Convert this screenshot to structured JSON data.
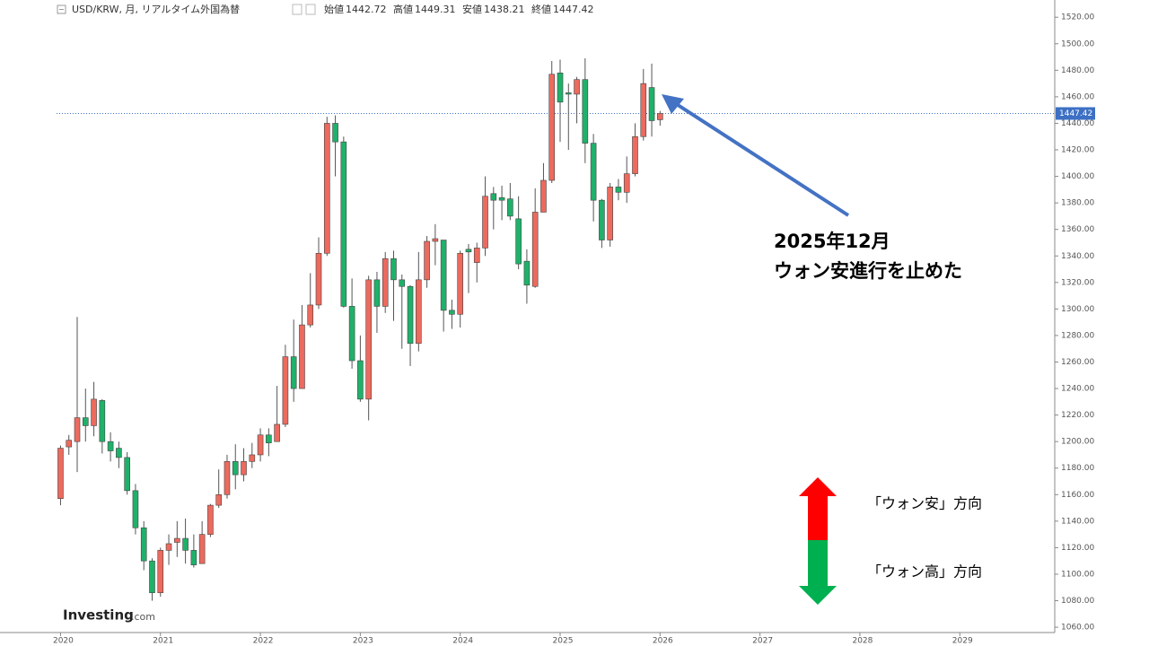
{
  "chart_data": {
    "type": "candlestick",
    "title": "USD/KRW, 月, リアルタイム外国為替",
    "ohlc_labels": [
      "始値",
      "高値",
      "安値",
      "終値"
    ],
    "source": [
      "Investing",
      ".com"
    ],
    "annotation": [
      "2025年12月",
      "ウォン安進行を止めた"
    ],
    "direction_labels": [
      "「ウォン安」方向",
      "「ウォン高」方向"
    ],
    "up_color": "#ec6a5e",
    "down_color": "#1fb16a",
    "last_price_color": "#3d70c4",
    "open": [
      1157,
      1196,
      1200,
      1218,
      1212,
      1231,
      1200,
      1195,
      1188,
      1163,
      1135,
      1110,
      1086,
      1118,
      1124,
      1127,
      1118,
      1108,
      1130,
      1152,
      1160,
      1185,
      1175,
      1185,
      1190,
      1205,
      1200,
      1213,
      1264,
      1240,
      1288,
      1303,
      1342,
      1440,
      1426,
      1302,
      1261,
      1232,
      1322,
      1302,
      1338,
      1322,
      1317,
      1274,
      1322,
      1351,
      1352,
      1299,
      1296,
      1345,
      1335,
      1346,
      1387,
      1384,
      1383,
      1368,
      1336,
      1317,
      1373,
      1397,
      1478,
      1463,
      1462,
      1473,
      1425,
      1382,
      1352,
      1392,
      1388,
      1402,
      1430,
      1467,
      1442.72
    ],
    "high": [
      1197,
      1205,
      1294,
      1240,
      1245,
      1232,
      1207,
      1200,
      1192,
      1168,
      1140,
      1112,
      1120,
      1130,
      1140,
      1142,
      1130,
      1140,
      1153,
      1179,
      1190,
      1198,
      1195,
      1199,
      1210,
      1210,
      1242,
      1273,
      1292,
      1303,
      1327,
      1354,
      1445,
      1446,
      1430,
      1323,
      1280,
      1325,
      1328,
      1343,
      1344,
      1326,
      1318,
      1343,
      1355,
      1364,
      1352,
      1307,
      1344,
      1349,
      1350,
      1400,
      1392,
      1393,
      1395,
      1385,
      1345,
      1391,
      1410,
      1487,
      1488,
      1470,
      1475,
      1489,
      1432,
      1383,
      1395,
      1398,
      1415,
      1440,
      1481,
      1485,
      1449.31
    ],
    "low": [
      1152,
      1190,
      1177,
      1200,
      1204,
      1191,
      1185,
      1180,
      1160,
      1130,
      1103,
      1080,
      1083,
      1107,
      1113,
      1108,
      1105,
      1108,
      1128,
      1150,
      1157,
      1164,
      1170,
      1180,
      1185,
      1189,
      1200,
      1211,
      1230,
      1240,
      1286,
      1300,
      1340,
      1400,
      1301,
      1255,
      1230,
      1216,
      1282,
      1297,
      1291,
      1270,
      1257,
      1268,
      1316,
      1333,
      1283,
      1285,
      1286,
      1312,
      1320,
      1340,
      1360,
      1367,
      1367,
      1330,
      1304,
      1316,
      1373,
      1395,
      1426,
      1420,
      1440,
      1410,
      1366,
      1346,
      1347,
      1382,
      1380,
      1400,
      1427,
      1430,
      1438.21
    ],
    "close": [
      1195,
      1201,
      1218,
      1212,
      1232,
      1200,
      1193,
      1188,
      1163,
      1135,
      1110,
      1086,
      1118,
      1123,
      1127,
      1118,
      1107,
      1130,
      1152,
      1160,
      1185,
      1175,
      1185,
      1190,
      1205,
      1199,
      1213,
      1264,
      1240,
      1288,
      1303,
      1342,
      1440,
      1426,
      1302,
      1261,
      1232,
      1322,
      1302,
      1338,
      1322,
      1317,
      1274,
      1322,
      1351,
      1353,
      1299,
      1296,
      1342,
      1343,
      1346,
      1385,
      1382,
      1382,
      1370,
      1334,
      1318,
      1373,
      1397,
      1477,
      1456,
      1462,
      1473,
      1425,
      1382,
      1352,
      1392,
      1388,
      1402,
      1430,
      1470,
      1442,
      1447.42
    ],
    "xlim": [
      2019.96,
      2029.95
    ],
    "xticks": [
      2020,
      2021,
      2022,
      2023,
      2024,
      2025,
      2026,
      2027,
      2028,
      2029
    ],
    "ylim": [
      1056,
      1533
    ],
    "yticks": [
      {
        "value": 1060,
        "label": "1060.00"
      },
      {
        "value": 1080,
        "label": "1080.00"
      },
      {
        "value": 1100,
        "label": "1100.00"
      },
      {
        "value": 1120,
        "label": "1120.00"
      },
      {
        "value": 1140,
        "label": "1140.00"
      },
      {
        "value": 1160,
        "label": "1160.00"
      },
      {
        "value": 1180,
        "label": "1180.00"
      },
      {
        "value": 1200,
        "label": "1200.00"
      },
      {
        "value": 1220,
        "label": "1220.00"
      },
      {
        "value": 1240,
        "label": "1240.00"
      },
      {
        "value": 1260,
        "label": "1260.00"
      },
      {
        "value": 1280,
        "label": "1280.00"
      },
      {
        "value": 1300,
        "label": "1300.00"
      },
      {
        "value": 1320,
        "label": "1320.00"
      },
      {
        "value": 1340,
        "label": "1340.00"
      },
      {
        "value": 1360,
        "label": "1360.00"
      },
      {
        "value": 1380,
        "label": "1380.00"
      },
      {
        "value": 1400,
        "label": "1400.00"
      },
      {
        "value": 1420,
        "label": "1420.00"
      },
      {
        "value": 1440,
        "label": "1440.00"
      },
      {
        "value": 1460,
        "label": "1460.00"
      },
      {
        "value": 1480,
        "label": "1480.00"
      },
      {
        "value": 1500,
        "label": "1500.00"
      },
      {
        "value": 1520,
        "label": "1520.00"
      }
    ]
  }
}
